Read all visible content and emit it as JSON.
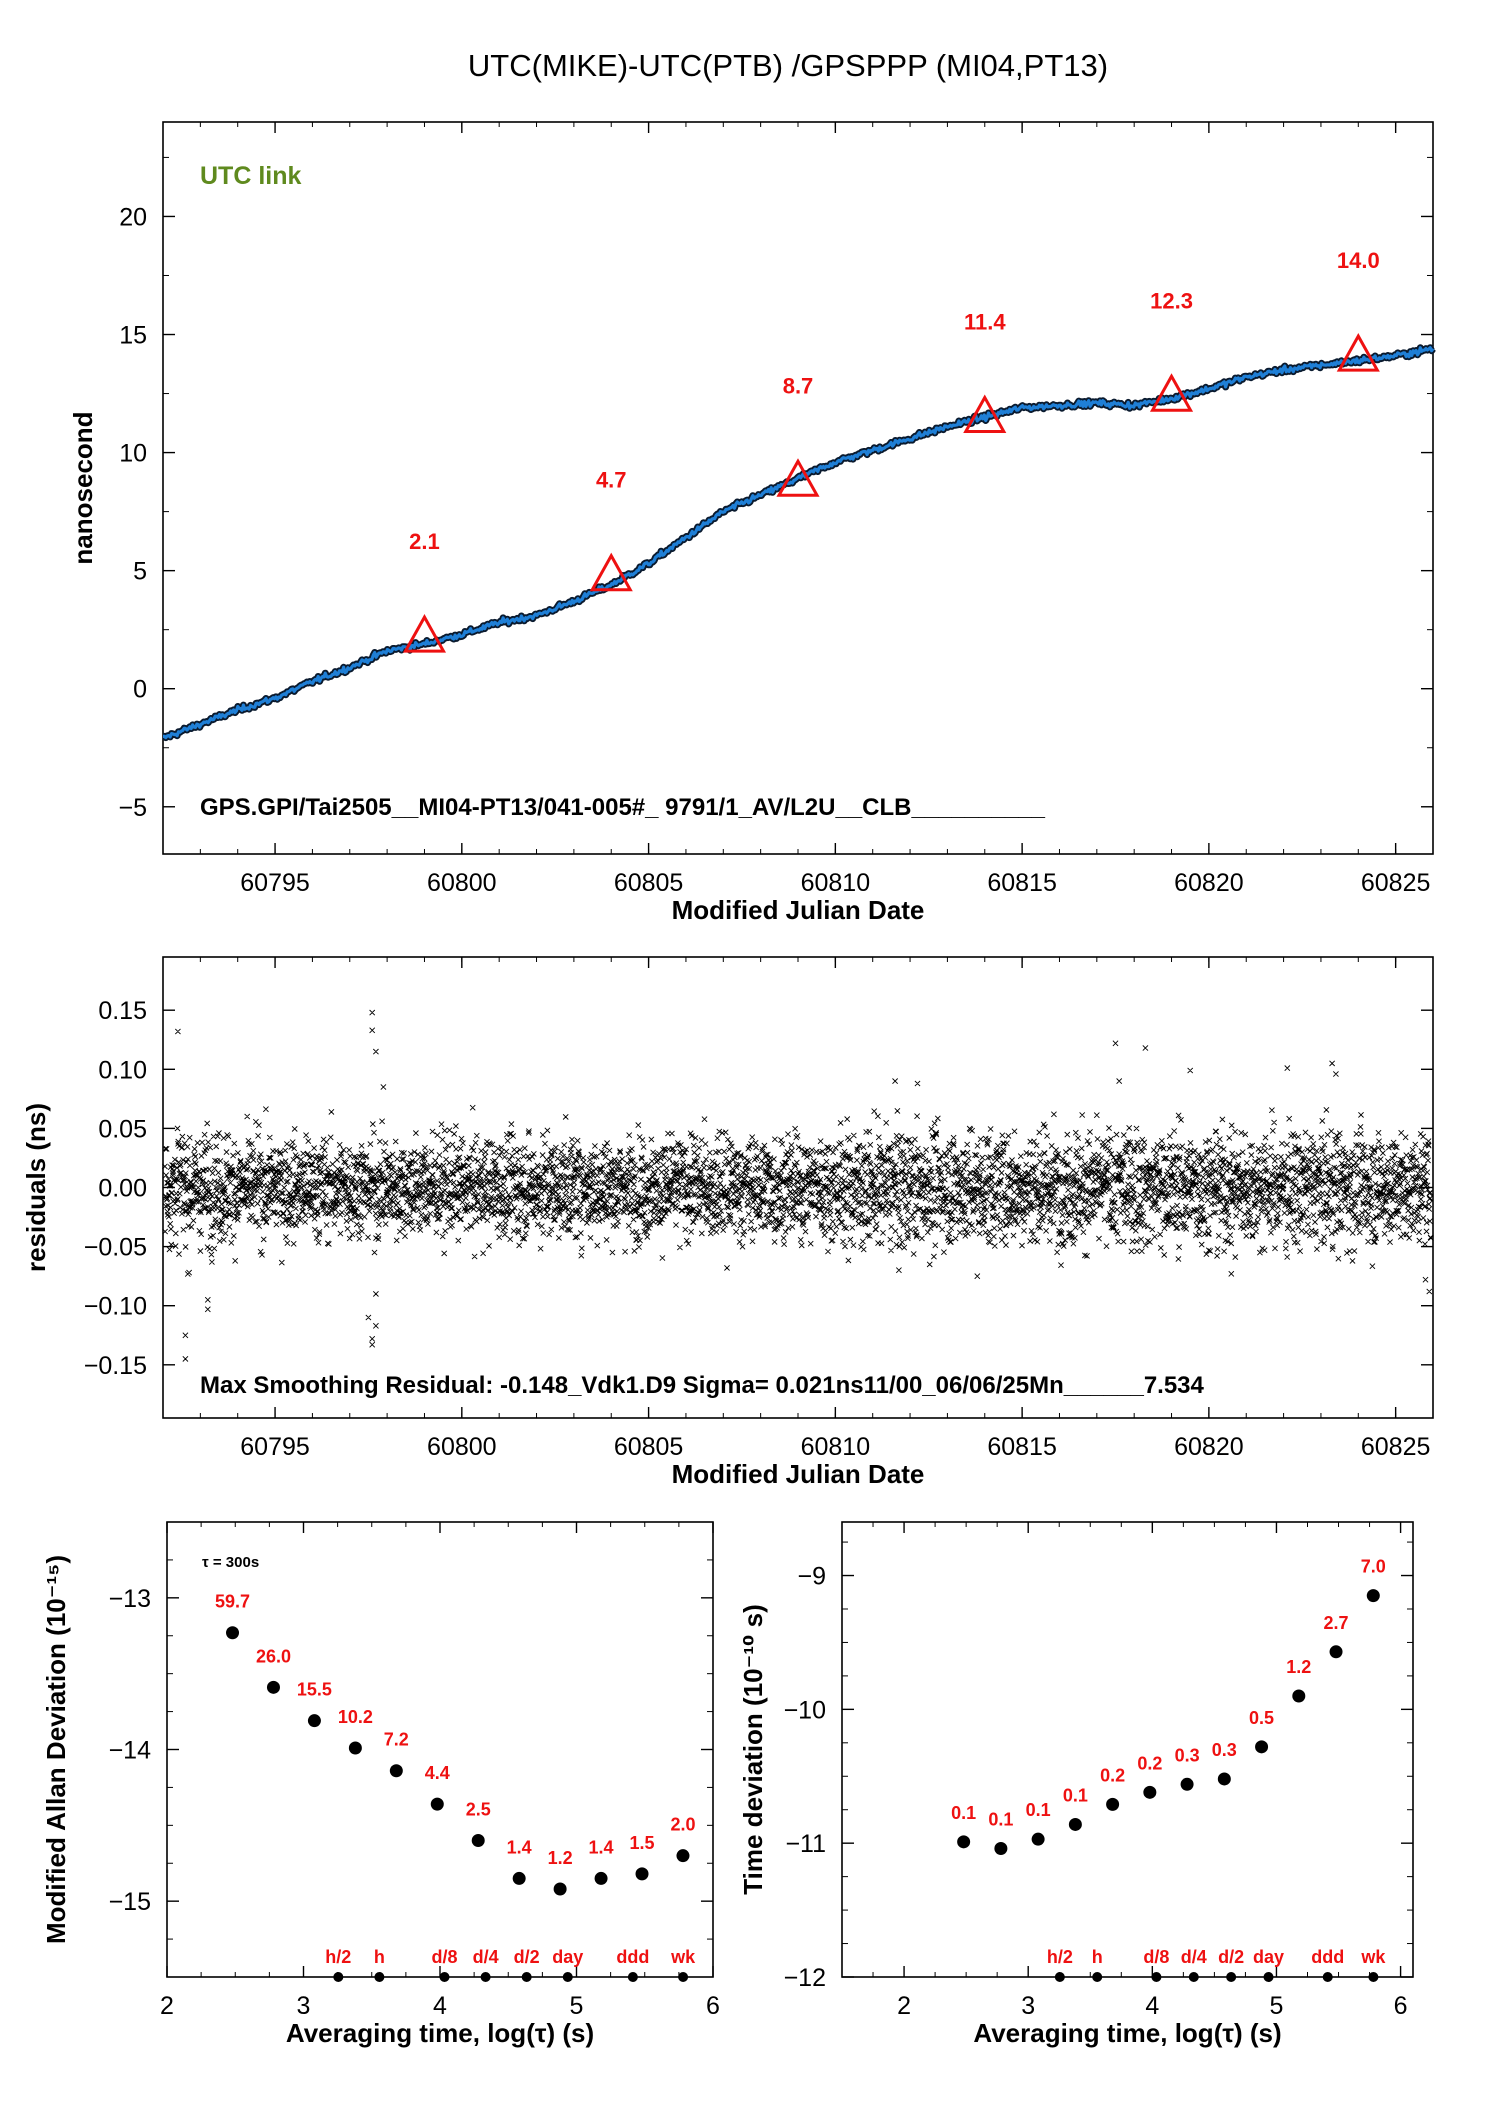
{
  "page_title": "UTC(MIKE)-UTC(PTB)  /GPSPPP  (MI04,PT13)",
  "colors": {
    "accent": "#1f7fd6",
    "marker": "#ee1111",
    "link_text": "#5f8a1e"
  },
  "chart_data": [
    {
      "id": "time_series",
      "type": "line",
      "ylabel": "nanosecond",
      "xlabel": "Modified Julian Date",
      "xlim": [
        60792,
        60826
      ],
      "ylim": [
        -7,
        24
      ],
      "xticks": [
        60795,
        60800,
        60805,
        60810,
        60815,
        60820,
        60825
      ],
      "yticks": [
        -5,
        0,
        5,
        10,
        15,
        20
      ],
      "link_label": "UTC link",
      "footer": "GPS.GPI/Tai2505__MI04-PT13/041-005#_  9791/1_AV/L2U__CLB__________",
      "series": [
        {
          "x": [
            60792,
            60793,
            60794,
            60795,
            60796,
            60797,
            60798,
            60799,
            60800,
            60801,
            60802,
            60803,
            60804,
            60805,
            60806,
            60807,
            60808,
            60809,
            60810,
            60811,
            60812,
            60813,
            60814,
            60815,
            60816,
            60817,
            60818,
            60819,
            60820,
            60821,
            60822,
            60823,
            60824,
            60825,
            60826
          ],
          "y": [
            -2.1,
            -1.5,
            -0.9,
            -0.4,
            0.3,
            0.9,
            1.6,
            1.9,
            2.3,
            2.8,
            3.1,
            3.7,
            4.4,
            5.3,
            6.4,
            7.5,
            8.2,
            8.9,
            9.6,
            10.1,
            10.6,
            11.1,
            11.5,
            11.9,
            12.0,
            12.1,
            12.0,
            12.3,
            12.7,
            13.2,
            13.5,
            13.7,
            13.9,
            14.1,
            14.4
          ]
        }
      ],
      "markers": [
        {
          "x": 60799,
          "y": 2.1,
          "label": "2.1"
        },
        {
          "x": 60804,
          "y": 4.7,
          "label": "4.7"
        },
        {
          "x": 60809,
          "y": 8.7,
          "label": "8.7"
        },
        {
          "x": 60814,
          "y": 11.4,
          "label": "11.4"
        },
        {
          "x": 60819,
          "y": 12.3,
          "label": "12.3"
        },
        {
          "x": 60824,
          "y": 14.0,
          "label": "14.0"
        }
      ]
    },
    {
      "id": "residuals",
      "type": "scatter",
      "ylabel": "residuals (ns)",
      "xlabel": "Modified Julian Date",
      "xlim": [
        60792,
        60826
      ],
      "ylim": [
        -0.195,
        0.195
      ],
      "xticks": [
        60795,
        60800,
        60805,
        60810,
        60815,
        60820,
        60825
      ],
      "yticks": [
        -0.15,
        -0.1,
        -0.05,
        0,
        0.05,
        0.1,
        0.15
      ],
      "ytick_labels": [
        "−0.15",
        "−0.10",
        "−0.05",
        "0.00",
        "0.05",
        "0.10",
        "0.15"
      ],
      "footer": "Max Smoothing Residual: -0.148_Vdk1.D9  Sigma= 0.021ns11/00_06/06/25Mn______7.534",
      "sigma": 0.021,
      "outliers": [
        {
          "x": 60792.4,
          "y": 0.132
        },
        {
          "x": 60792.6,
          "y": -0.145
        },
        {
          "x": 60792.6,
          "y": -0.125
        },
        {
          "x": 60792.7,
          "y": -0.072
        },
        {
          "x": 60793.2,
          "y": -0.095
        },
        {
          "x": 60793.2,
          "y": -0.103
        },
        {
          "x": 60797.6,
          "y": 0.148
        },
        {
          "x": 60797.6,
          "y": 0.133
        },
        {
          "x": 60797.7,
          "y": 0.115
        },
        {
          "x": 60797.6,
          "y": -0.133
        },
        {
          "x": 60797.6,
          "y": -0.128
        },
        {
          "x": 60797.7,
          "y": -0.117
        },
        {
          "x": 60797.5,
          "y": -0.11
        },
        {
          "x": 60797.7,
          "y": -0.09
        },
        {
          "x": 60797.9,
          "y": 0.085
        },
        {
          "x": 60817.5,
          "y": 0.122
        },
        {
          "x": 60817.6,
          "y": 0.09
        },
        {
          "x": 60818.3,
          "y": 0.118
        },
        {
          "x": 60823.3,
          "y": 0.105
        },
        {
          "x": 60823.4,
          "y": 0.096
        },
        {
          "x": 60811.6,
          "y": 0.09
        },
        {
          "x": 60812.2,
          "y": 0.088
        },
        {
          "x": 60819.5,
          "y": 0.099
        },
        {
          "x": 60822.1,
          "y": 0.101
        },
        {
          "x": 60825.9,
          "y": -0.088
        },
        {
          "x": 60825.8,
          "y": -0.078
        },
        {
          "x": 60813.8,
          "y": -0.075
        },
        {
          "x": 60811.7,
          "y": -0.07
        },
        {
          "x": 60820.6,
          "y": -0.073
        },
        {
          "x": 60807.1,
          "y": -0.068
        }
      ]
    },
    {
      "id": "mod_allan",
      "type": "scatter",
      "ylabel": "Modified Allan Deviation (10⁻¹⁵)",
      "xlabel": "Averaging time, log(τ) (s)",
      "xlim": [
        2,
        6
      ],
      "ylim": [
        -15.5,
        -12.5
      ],
      "xticks": [
        2,
        3,
        4,
        5,
        6
      ],
      "yticks": [
        -15,
        -14,
        -13
      ],
      "tau_note": "τ = 300s",
      "points": [
        {
          "x": 2.48,
          "y": -13.23,
          "label": "59.7"
        },
        {
          "x": 2.78,
          "y": -13.59,
          "label": "26.0"
        },
        {
          "x": 3.08,
          "y": -13.81,
          "label": "15.5"
        },
        {
          "x": 3.38,
          "y": -13.99,
          "label": "10.2"
        },
        {
          "x": 3.68,
          "y": -14.14,
          "label": "7.2"
        },
        {
          "x": 3.98,
          "y": -14.36,
          "label": "4.4"
        },
        {
          "x": 4.28,
          "y": -14.6,
          "label": "2.5"
        },
        {
          "x": 4.58,
          "y": -14.85,
          "label": "1.4"
        },
        {
          "x": 4.88,
          "y": -14.92,
          "label": "1.2"
        },
        {
          "x": 5.18,
          "y": -14.85,
          "label": "1.4"
        },
        {
          "x": 5.48,
          "y": -14.82,
          "label": "1.5"
        },
        {
          "x": 5.78,
          "y": -14.7,
          "label": "2.0"
        }
      ],
      "interval_marks": [
        {
          "x": 3.255,
          "label": "h/2"
        },
        {
          "x": 3.556,
          "label": "h"
        },
        {
          "x": 4.033,
          "label": "d/8"
        },
        {
          "x": 4.334,
          "label": "d/4"
        },
        {
          "x": 4.635,
          "label": "d/2"
        },
        {
          "x": 4.936,
          "label": "day"
        },
        {
          "x": 5.413,
          "label": "ddd"
        },
        {
          "x": 5.781,
          "label": "wk"
        }
      ]
    },
    {
      "id": "time_dev",
      "type": "scatter",
      "ylabel": "Time deviation (10⁻¹⁰ s)",
      "xlabel": "Averaging time, log(τ) (s)",
      "xlim": [
        1.5,
        6.1
      ],
      "ylim": [
        -12,
        -8.6
      ],
      "xticks": [
        2,
        3,
        4,
        5,
        6
      ],
      "yticks": [
        -12,
        -11,
        -10,
        -9
      ],
      "points": [
        {
          "x": 2.48,
          "y": -10.99,
          "label": "0.1"
        },
        {
          "x": 2.78,
          "y": -11.04,
          "label": "0.1"
        },
        {
          "x": 3.08,
          "y": -10.97,
          "label": "0.1"
        },
        {
          "x": 3.38,
          "y": -10.86,
          "label": "0.1"
        },
        {
          "x": 3.68,
          "y": -10.71,
          "label": "0.2"
        },
        {
          "x": 3.98,
          "y": -10.62,
          "label": "0.2"
        },
        {
          "x": 4.28,
          "y": -10.56,
          "label": "0.3"
        },
        {
          "x": 4.58,
          "y": -10.52,
          "label": "0.3"
        },
        {
          "x": 4.88,
          "y": -10.28,
          "label": "0.5"
        },
        {
          "x": 5.18,
          "y": -9.9,
          "label": "1.2"
        },
        {
          "x": 5.48,
          "y": -9.57,
          "label": "2.7"
        },
        {
          "x": 5.78,
          "y": -9.15,
          "label": "7.0"
        }
      ],
      "interval_marks": [
        {
          "x": 3.255,
          "label": "h/2"
        },
        {
          "x": 3.556,
          "label": "h"
        },
        {
          "x": 4.033,
          "label": "d/8"
        },
        {
          "x": 4.334,
          "label": "d/4"
        },
        {
          "x": 4.635,
          "label": "d/2"
        },
        {
          "x": 4.936,
          "label": "day"
        },
        {
          "x": 5.413,
          "label": "ddd"
        },
        {
          "x": 5.781,
          "label": "wk"
        }
      ]
    }
  ]
}
